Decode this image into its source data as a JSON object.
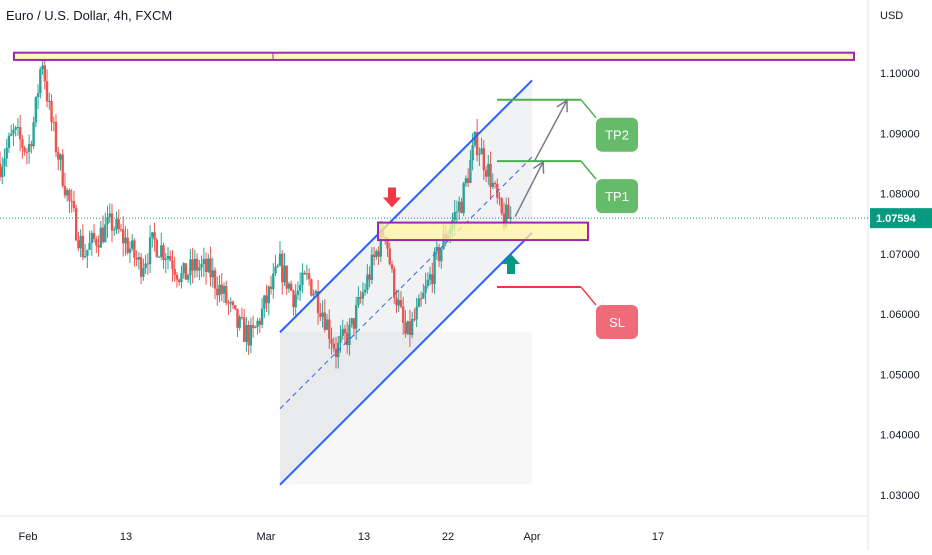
{
  "header": {
    "symbol_title": "Euro / U.S. Dollar, 4h, FXCM"
  },
  "price_axis": {
    "currency": "USD",
    "last_price_label": "1.07594"
  },
  "annotations": {
    "tp1": "TP1",
    "tp2": "TP2",
    "sl": "SL"
  },
  "colors": {
    "candle_up": "#26a69a",
    "candle_down": "#ef5350",
    "channel": "#2962ff",
    "zone_border": "#9c27b0",
    "zone_fill": "#fff59d",
    "tp_line": "#4caf50",
    "tp_label": "#66bb6a",
    "sl_line": "#f23645",
    "sl_label": "#f06b7a",
    "arrow_down": "#f23645",
    "arrow_up": "#089981",
    "projection": "#787b86",
    "last_price": "#089981"
  },
  "chart_data": {
    "type": "candlestick",
    "title": "Euro / U.S. Dollar, 4h, FXCM",
    "ylabel": "USD",
    "ylim": [
      1.0265,
      1.1075
    ],
    "xlim": [
      -2,
      60
    ],
    "x_tick_labels": [
      "Feb",
      "13",
      "Mar",
      "13",
      "22",
      "Apr",
      "17"
    ],
    "x_tick_positions": [
      0,
      7,
      17,
      24,
      30,
      36,
      45
    ],
    "y_ticks": [
      1.03,
      1.04,
      1.05,
      1.06,
      1.07,
      1.08,
      1.09,
      1.1
    ],
    "y_tick_labels": [
      "1.03000",
      "1.04000",
      "1.05000",
      "1.06000",
      "1.07000",
      "1.08000",
      "1.09000",
      "1.10000"
    ],
    "last_price": 1.07594,
    "price_path": [
      [
        -2,
        1.085
      ],
      [
        -1,
        1.09
      ],
      [
        0,
        1.087
      ],
      [
        0.5,
        1.093
      ],
      [
        1,
        1.103
      ],
      [
        1.5,
        1.094
      ],
      [
        2,
        1.088
      ],
      [
        3,
        1.078
      ],
      [
        4,
        1.07
      ],
      [
        5,
        1.073
      ],
      [
        6,
        1.075
      ],
      [
        7,
        1.072
      ],
      [
        8,
        1.068
      ],
      [
        9,
        1.072
      ],
      [
        10,
        1.07
      ],
      [
        11,
        1.066
      ],
      [
        12,
        1.068
      ],
      [
        13,
        1.067
      ],
      [
        14,
        1.063
      ],
      [
        15,
        1.058
      ],
      [
        16,
        1.056
      ],
      [
        17,
        1.062
      ],
      [
        18,
        1.068
      ],
      [
        19,
        1.063
      ],
      [
        20,
        1.066
      ],
      [
        21,
        1.061
      ],
      [
        22,
        1.054
      ],
      [
        23,
        1.057
      ],
      [
        24,
        1.064
      ],
      [
        25,
        1.071
      ],
      [
        25.5,
        1.0745
      ],
      [
        26,
        1.066
      ],
      [
        27,
        1.056
      ],
      [
        28,
        1.061
      ],
      [
        29,
        1.068
      ],
      [
        30,
        1.074
      ],
      [
        31,
        1.079
      ],
      [
        32,
        1.089
      ],
      [
        33,
        1.083
      ],
      [
        33.8,
        1.076
      ],
      [
        34.5,
        1.0759
      ]
    ],
    "levels": [
      {
        "label": "TP2",
        "y": 1.0956
      },
      {
        "label": "TP1",
        "y": 1.0854
      },
      {
        "label": "SL",
        "y": 1.0645
      }
    ],
    "resistance_zone": {
      "x_range": [
        -1,
        59
      ],
      "y_range": [
        1.1022,
        1.1034
      ]
    },
    "support_zone": {
      "x_range": [
        25,
        40
      ],
      "y_range": [
        1.0723,
        1.0752
      ]
    },
    "channel": {
      "upper": [
        [
          18,
          1.057
        ],
        [
          36,
          1.0988
        ]
      ],
      "lower": [
        [
          18,
          1.0317
        ],
        [
          36,
          1.0735
        ]
      ],
      "mid": [
        [
          18,
          1.0443
        ],
        [
          36,
          1.0861
        ]
      ]
    },
    "signal_arrows": [
      {
        "direction": "down",
        "x": 26,
        "y": 1.0787
      },
      {
        "direction": "up",
        "x": 34.5,
        "y": 1.069
      }
    ],
    "projection_arrows": [
      [
        [
          34.8,
          1.0762
        ],
        [
          36.8,
          1.0853
        ]
      ],
      [
        [
          36.2,
          1.0855
        ],
        [
          38.5,
          1.0955
        ]
      ]
    ]
  }
}
